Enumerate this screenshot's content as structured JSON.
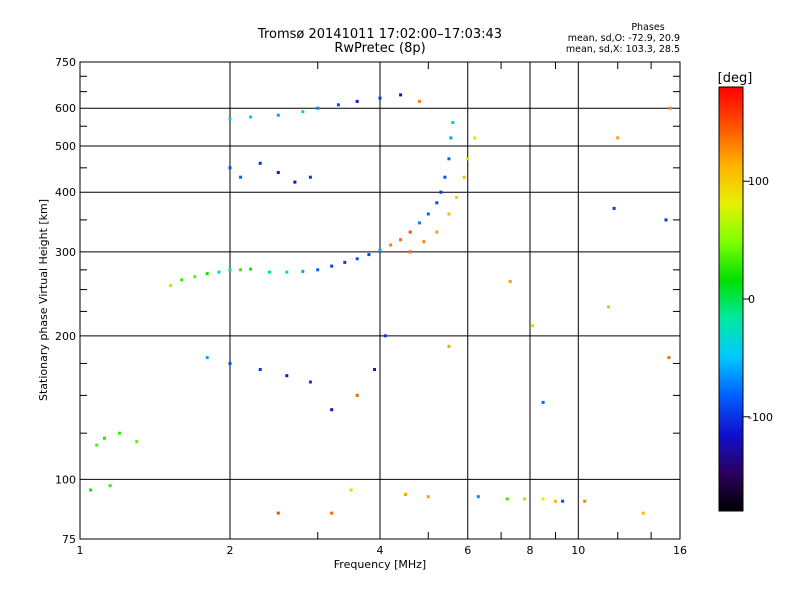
{
  "chart_data": {
    "type": "scatter",
    "title": "Tromsø 20141011 17:02:00–17:03:43",
    "subtitle": "RwPretec (8p)",
    "xlabel": "Frequency [MHz]",
    "ylabel": "Stationary phase Virtual Height [km]",
    "x_scale": "log",
    "y_scale": "log",
    "xlim": [
      1,
      16
    ],
    "ylim": [
      75,
      750
    ],
    "x_ticks": [
      1,
      2,
      4,
      6,
      8,
      10,
      16
    ],
    "x_tick_labels": [
      "1",
      "2",
      "4",
      "6",
      "8",
      "10",
      "16"
    ],
    "x_grid": [
      2,
      4,
      6,
      8,
      10
    ],
    "x_minor_ticks": [
      3,
      5,
      7,
      9,
      12,
      14
    ],
    "y_ticks": [
      75,
      100,
      200,
      300,
      400,
      500,
      600,
      750
    ],
    "y_tick_labels": [
      "75",
      "100",
      "200",
      "300",
      "400",
      "500",
      "600",
      "750"
    ],
    "y_grid": [
      100,
      200,
      300,
      400,
      500,
      600
    ],
    "y_minor_ticks": [
      125,
      150,
      175,
      225,
      250,
      275,
      350,
      450,
      550,
      650,
      700
    ],
    "grid": true,
    "phase_box": {
      "heading": "Phases",
      "line1": "mean, sd,O: -72.9, 20.9",
      "line2": "mean, sd,X: 103.3, 28.5"
    },
    "colorbar": {
      "label": "[deg]",
      "range": [
        -180,
        180
      ],
      "ticks": [
        100,
        0,
        -100
      ],
      "tick_labels": [
        "100",
        "0",
        "-100"
      ],
      "colors": [
        "#000000",
        "#2a0060",
        "#1010d0",
        "#0060ff",
        "#00c8ff",
        "#00e8a0",
        "#00e000",
        "#80ff00",
        "#e8f000",
        "#ffb000",
        "#ff5000",
        "#ff0000"
      ]
    },
    "series": [
      {
        "points": [
          [
            1.08,
            118,
            35
          ],
          [
            1.12,
            122,
            25
          ],
          [
            1.2,
            125,
            30
          ],
          [
            1.3,
            120,
            40
          ],
          [
            1.05,
            95,
            20
          ],
          [
            1.15,
            97,
            30
          ],
          [
            1.52,
            255,
            60
          ],
          [
            1.6,
            262,
            30
          ],
          [
            1.7,
            266,
            40
          ],
          [
            1.8,
            270,
            20
          ],
          [
            1.9,
            272,
            -40
          ],
          [
            2.0,
            275,
            -30
          ],
          [
            2.1,
            275,
            30
          ],
          [
            2.2,
            276,
            20
          ],
          [
            2.4,
            272,
            -20
          ],
          [
            2.6,
            272,
            -30
          ],
          [
            2.8,
            273,
            -60
          ],
          [
            3.0,
            275,
            -80
          ],
          [
            3.2,
            280,
            -95
          ],
          [
            3.4,
            285,
            -100
          ],
          [
            3.6,
            290,
            -90
          ],
          [
            3.8,
            296,
            -95
          ],
          [
            4.0,
            302,
            -60
          ],
          [
            4.2,
            310,
            130
          ],
          [
            4.4,
            318,
            140
          ],
          [
            4.6,
            330,
            150
          ],
          [
            4.8,
            345,
            -70
          ],
          [
            5.0,
            360,
            -80
          ],
          [
            5.2,
            380,
            -90
          ],
          [
            5.3,
            400,
            -100
          ],
          [
            5.4,
            430,
            -90
          ],
          [
            5.5,
            470,
            -80
          ],
          [
            5.55,
            520,
            -60
          ],
          [
            5.6,
            560,
            -50
          ],
          [
            4.6,
            300,
            140
          ],
          [
            4.9,
            315,
            130
          ],
          [
            5.2,
            330,
            120
          ],
          [
            5.5,
            360,
            110
          ],
          [
            5.7,
            390,
            100
          ],
          [
            5.9,
            430,
            110
          ],
          [
            6.0,
            470,
            90
          ],
          [
            6.2,
            520,
            70
          ],
          [
            2.0,
            570,
            -40
          ],
          [
            2.2,
            575,
            -50
          ],
          [
            2.5,
            580,
            -60
          ],
          [
            2.8,
            590,
            -40
          ],
          [
            3.0,
            600,
            -70
          ],
          [
            3.3,
            610,
            -90
          ],
          [
            3.6,
            620,
            -110
          ],
          [
            4.0,
            630,
            -100
          ],
          [
            4.4,
            640,
            -120
          ],
          [
            4.8,
            620,
            130
          ],
          [
            2.0,
            450,
            -90
          ],
          [
            2.1,
            430,
            -80
          ],
          [
            2.3,
            460,
            -100
          ],
          [
            2.5,
            440,
            -110
          ],
          [
            2.7,
            420,
            -120
          ],
          [
            2.9,
            430,
            -100
          ],
          [
            1.8,
            180,
            -60
          ],
          [
            2.0,
            175,
            -90
          ],
          [
            2.3,
            170,
            -100
          ],
          [
            2.6,
            165,
            -110
          ],
          [
            2.9,
            160,
            -100
          ],
          [
            3.2,
            140,
            -120
          ],
          [
            3.6,
            150,
            140
          ],
          [
            3.9,
            170,
            -110
          ],
          [
            4.1,
            200,
            -100
          ],
          [
            5.5,
            190,
            120
          ],
          [
            7.3,
            260,
            120
          ],
          [
            8.1,
            210,
            100
          ],
          [
            8.5,
            145,
            -80
          ],
          [
            9.0,
            90,
            110
          ],
          [
            10.3,
            90,
            130
          ],
          [
            11.5,
            230,
            110
          ],
          [
            11.8,
            370,
            -100
          ],
          [
            12.0,
            520,
            120
          ],
          [
            13.5,
            85,
            110
          ],
          [
            15.2,
            180,
            140
          ],
          [
            15.0,
            350,
            -100
          ],
          [
            15.3,
            600,
            130
          ],
          [
            2.5,
            85,
            150
          ],
          [
            3.2,
            85,
            140
          ],
          [
            3.5,
            95,
            100
          ],
          [
            4.5,
            93,
            120
          ],
          [
            5.0,
            92,
            120
          ],
          [
            6.3,
            92,
            -70
          ],
          [
            7.2,
            91,
            30
          ],
          [
            7.8,
            91,
            60
          ],
          [
            8.5,
            91,
            80
          ],
          [
            9.3,
            90,
            -90
          ]
        ]
      }
    ]
  }
}
